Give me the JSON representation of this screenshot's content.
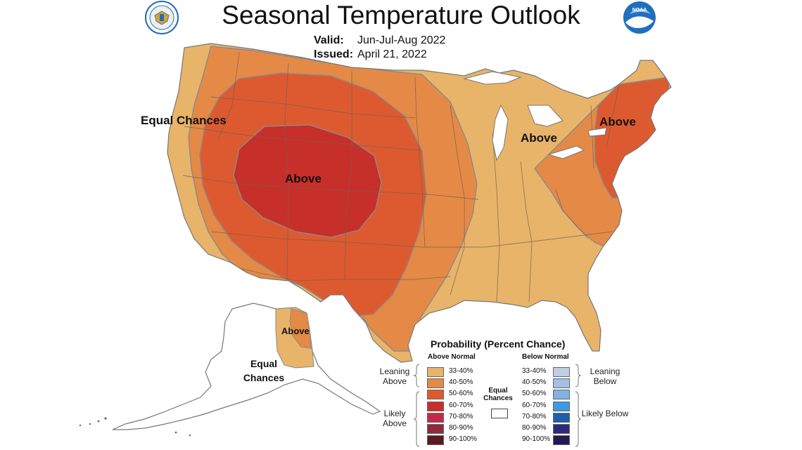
{
  "title": "Seasonal Temperature Outlook",
  "valid_label": "Valid:",
  "valid_value": "Jun-Jul-Aug 2022",
  "issued_label": "Issued:",
  "issued_value": "April 21, 2022",
  "logos": {
    "left": "dept-of-commerce-seal",
    "right": "noaa-logo"
  },
  "map_labels": {
    "west": "Equal Chances",
    "central": "Above",
    "great_lakes": "Above",
    "northeast": "Above",
    "alaska_east": "Above",
    "alaska_west": "Equal Chances"
  },
  "colors": {
    "c33_40": "#e8b46a",
    "c40_50": "#e48a46",
    "c50_60": "#dd5a30",
    "c60_70": "#c72f2a",
    "outline": "#8a8a8a",
    "state_line": "#9a6f50"
  },
  "legend": {
    "title": "Probability (Percent Chance)",
    "above_header": "Above Normal",
    "below_header": "Below Normal",
    "equal_chances": "Equal Chances",
    "leaning_above": "Leaning Above",
    "likely_above": "Likely Above",
    "leaning_below": "Leaning Below",
    "likely_below": "Likely Below",
    "above_items": [
      {
        "range": "33-40%",
        "color": "#e8b46a"
      },
      {
        "range": "40-50%",
        "color": "#e48a46"
      },
      {
        "range": "50-60%",
        "color": "#dd5a30"
      },
      {
        "range": "60-70%",
        "color": "#c72f2a"
      },
      {
        "range": "70-80%",
        "color": "#c6284c"
      },
      {
        "range": "80-90%",
        "color": "#8e2a3a"
      },
      {
        "range": "90-100%",
        "color": "#5b1a1e"
      }
    ],
    "below_items": [
      {
        "range": "33-40%",
        "color": "#bfcde6"
      },
      {
        "range": "40-50%",
        "color": "#a3c0e3"
      },
      {
        "range": "50-60%",
        "color": "#7fb4e3"
      },
      {
        "range": "60-70%",
        "color": "#3a9be0"
      },
      {
        "range": "70-80%",
        "color": "#1f5fa8"
      },
      {
        "range": "80-90%",
        "color": "#2b2a7a"
      },
      {
        "range": "90-100%",
        "color": "#221a55"
      }
    ]
  }
}
